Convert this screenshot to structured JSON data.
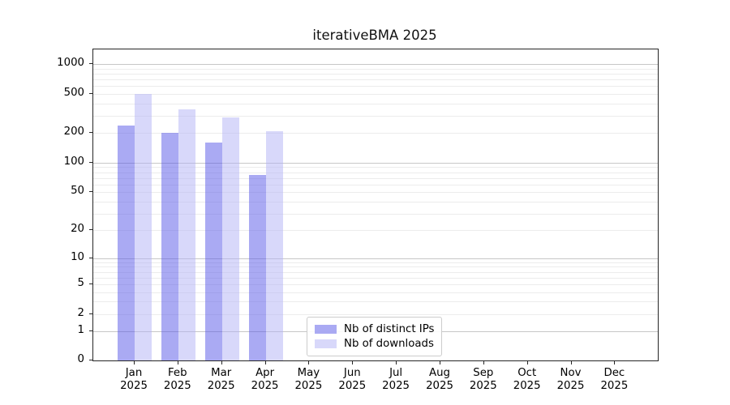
{
  "figure": {
    "background": "#ffffff",
    "axis_color": "#262626",
    "text_color": "#000000"
  },
  "chart_data": {
    "type": "bar",
    "title": "iterativeBMA 2025",
    "year": "2025",
    "categories": [
      "Jan",
      "Feb",
      "Mar",
      "Apr",
      "May",
      "Jun",
      "Jul",
      "Aug",
      "Sep",
      "Oct",
      "Nov",
      "Dec"
    ],
    "series": [
      {
        "name": "Nb of distinct IPs",
        "color": "#5555e7",
        "opacity": 0.5,
        "values": [
          240,
          200,
          160,
          75,
          0,
          0,
          0,
          0,
          0,
          0,
          0,
          0
        ]
      },
      {
        "name": "Nb of downloads",
        "color": "#b1b1f5",
        "opacity": 0.5,
        "values": [
          500,
          350,
          290,
          210,
          0,
          0,
          0,
          0,
          0,
          0,
          0,
          0
        ]
      }
    ],
    "x_axis": {
      "tick_labels_line1": [
        "Jan",
        "Feb",
        "Mar",
        "Apr",
        "May",
        "Jun",
        "Jul",
        "Aug",
        "Sep",
        "Oct",
        "Nov",
        "Dec"
      ],
      "tick_labels_line2": [
        "2025",
        "2025",
        "2025",
        "2025",
        "2025",
        "2025",
        "2025",
        "2025",
        "2025",
        "2025",
        "2025",
        "2025"
      ]
    },
    "y_axis": {
      "scale": "log10(1+x)",
      "ticks": [
        0,
        1,
        2,
        5,
        10,
        20,
        50,
        100,
        200,
        500,
        1000
      ],
      "ylim": [
        0,
        1400
      ],
      "major_gridlines": [
        1,
        10,
        100,
        1000
      ],
      "minor_gridline_mantissas": [
        2,
        3,
        4,
        5,
        6,
        7,
        8,
        9
      ]
    },
    "grid": {
      "major_color": "#c7c7c7",
      "minor_color": "#ececec",
      "visible": true
    },
    "legend": {
      "position": "lower center",
      "border_color": "#cccccc",
      "entries": [
        "Nb of distinct IPs",
        "Nb of downloads"
      ]
    }
  }
}
